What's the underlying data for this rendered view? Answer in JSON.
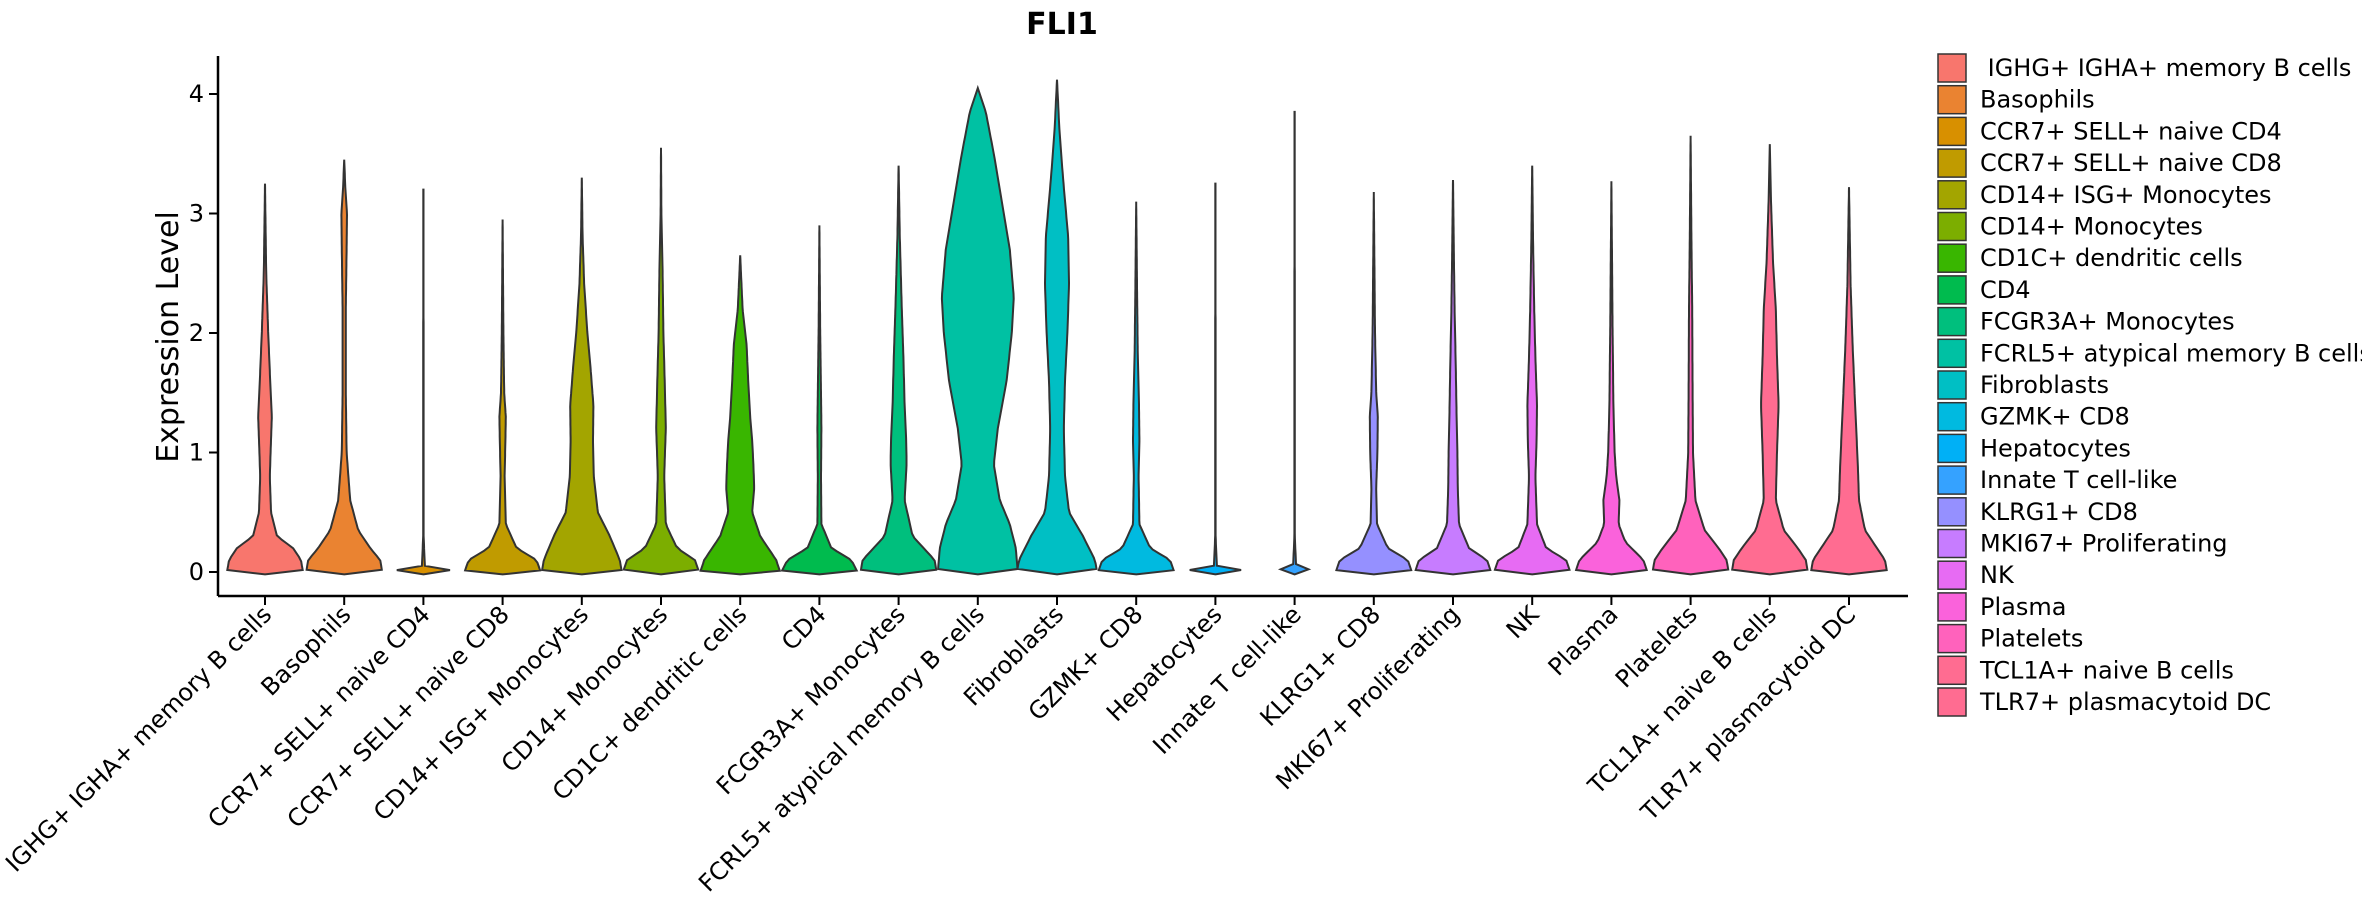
{
  "chart_data": {
    "type": "violin",
    "title": "FLI1",
    "xlabel": "",
    "ylabel": "Expression Level",
    "ylim": [
      -0.2,
      4.3
    ],
    "yticks": [
      0,
      1,
      2,
      3,
      4
    ],
    "legend_position": "right",
    "categories": [
      " IGHG+ IGHA+ memory B cells",
      "Basophils",
      "CCR7+ SELL+ naive CD4",
      "CCR7+ SELL+ naive CD8",
      "CD14+ ISG+ Monocytes",
      "CD14+ Monocytes",
      "CD1C+ dendritic cells",
      "CD4",
      "FCGR3A+ Monocytes",
      "FCRL5+ atypical memory B cells",
      "Fibroblasts",
      "GZMK+ CD8",
      "Hepatocytes",
      "Innate T cell-like",
      "KLRG1+ CD8",
      "MKI67+ Proliferating",
      "NK",
      "Plasma",
      "Platelets",
      "TCL1A+ naive B cells",
      "TLR7+ plasmacytoid DC"
    ],
    "colors": [
      "#F8766D",
      "#EA8331",
      "#D89000",
      "#C09B00",
      "#A3A500",
      "#7CAE00",
      "#39B600",
      "#00BB4E",
      "#00BF7D",
      "#00C1A3",
      "#00BFC4",
      "#00BAE0",
      "#00B0F6",
      "#35A2FF",
      "#9590FF",
      "#C77CFF",
      "#E76BF3",
      "#FA62DB",
      "#FF62BC",
      "#FF6C91",
      "#FF6C91"
    ],
    "series": [
      {
        "name": " IGHG+ IGHA+ memory B cells",
        "max": 3.25,
        "profile": [
          [
            0,
            0.95
          ],
          [
            0.1,
            0.9
          ],
          [
            0.2,
            0.7
          ],
          [
            0.3,
            0.3
          ],
          [
            0.5,
            0.15
          ],
          [
            0.8,
            0.12
          ],
          [
            1.0,
            0.14
          ],
          [
            1.3,
            0.17
          ],
          [
            1.6,
            0.13
          ],
          [
            2.0,
            0.08
          ],
          [
            2.5,
            0.03
          ],
          [
            3.0,
            0.01
          ],
          [
            3.25,
            0
          ]
        ]
      },
      {
        "name": "Basophils",
        "max": 3.45,
        "profile": [
          [
            0,
            0.95
          ],
          [
            0.1,
            0.9
          ],
          [
            0.2,
            0.65
          ],
          [
            0.35,
            0.35
          ],
          [
            0.6,
            0.15
          ],
          [
            1.0,
            0.06
          ],
          [
            1.5,
            0.04
          ],
          [
            2.2,
            0.04
          ],
          [
            2.7,
            0.06
          ],
          [
            3.0,
            0.07
          ],
          [
            3.2,
            0.03
          ],
          [
            3.45,
            0
          ]
        ]
      },
      {
        "name": "CCR7+ SELL+ naive CD4",
        "max": 3.2,
        "profile": [
          [
            0,
            1.0
          ],
          [
            0.015,
            0.7
          ],
          [
            0.03,
            0.04
          ],
          [
            0.3,
            0.005
          ],
          [
            3.2,
            0.003
          ]
        ]
      },
      {
        "name": "CCR7+ SELL+ naive CD8",
        "max": 2.95,
        "profile": [
          [
            0,
            0.95
          ],
          [
            0.1,
            0.85
          ],
          [
            0.2,
            0.35
          ],
          [
            0.4,
            0.08
          ],
          [
            0.8,
            0.05
          ],
          [
            1.1,
            0.07
          ],
          [
            1.3,
            0.08
          ],
          [
            1.5,
            0.04
          ],
          [
            2.0,
            0.02
          ],
          [
            2.95,
            0
          ]
        ]
      },
      {
        "name": "CD14+ ISG+ Monocytes",
        "max": 3.3,
        "profile": [
          [
            0,
            1.0
          ],
          [
            0.1,
            0.95
          ],
          [
            0.3,
            0.7
          ],
          [
            0.5,
            0.4
          ],
          [
            0.8,
            0.3
          ],
          [
            1.1,
            0.28
          ],
          [
            1.4,
            0.29
          ],
          [
            1.7,
            0.22
          ],
          [
            2.0,
            0.14
          ],
          [
            2.4,
            0.06
          ],
          [
            2.8,
            0.02
          ],
          [
            3.3,
            0
          ]
        ]
      },
      {
        "name": "CD14+ Monocytes",
        "max": 3.55,
        "profile": [
          [
            0,
            0.95
          ],
          [
            0.1,
            0.85
          ],
          [
            0.2,
            0.4
          ],
          [
            0.4,
            0.12
          ],
          [
            0.8,
            0.08
          ],
          [
            1.2,
            0.12
          ],
          [
            1.5,
            0.1
          ],
          [
            2.0,
            0.06
          ],
          [
            2.5,
            0.04
          ],
          [
            3.0,
            0.01
          ],
          [
            3.55,
            0
          ]
        ]
      },
      {
        "name": "CD1C+ dendritic cells",
        "max": 2.65,
        "profile": [
          [
            0,
            1.0
          ],
          [
            0.1,
            0.9
          ],
          [
            0.3,
            0.5
          ],
          [
            0.5,
            0.3
          ],
          [
            0.7,
            0.35
          ],
          [
            0.9,
            0.33
          ],
          [
            1.1,
            0.3
          ],
          [
            1.3,
            0.25
          ],
          [
            1.6,
            0.2
          ],
          [
            1.9,
            0.16
          ],
          [
            2.2,
            0.06
          ],
          [
            2.65,
            0
          ]
        ]
      },
      {
        "name": "CD4",
        "max": 2.9,
        "profile": [
          [
            0,
            0.95
          ],
          [
            0.1,
            0.8
          ],
          [
            0.2,
            0.3
          ],
          [
            0.4,
            0.05
          ],
          [
            0.8,
            0.04
          ],
          [
            1.2,
            0.05
          ],
          [
            1.5,
            0.04
          ],
          [
            2.0,
            0.02
          ],
          [
            2.9,
            0
          ]
        ]
      },
      {
        "name": "FCGR3A+ Monocytes",
        "max": 3.4,
        "profile": [
          [
            0,
            0.95
          ],
          [
            0.1,
            0.9
          ],
          [
            0.3,
            0.35
          ],
          [
            0.6,
            0.15
          ],
          [
            0.9,
            0.2
          ],
          [
            1.1,
            0.19
          ],
          [
            1.4,
            0.15
          ],
          [
            1.8,
            0.12
          ],
          [
            2.2,
            0.08
          ],
          [
            2.8,
            0.03
          ],
          [
            3.4,
            0
          ]
        ]
      },
      {
        "name": "FCRL5+ atypical memory B cells",
        "max": 4.05,
        "profile": [
          [
            0,
            1.0
          ],
          [
            0.2,
            0.95
          ],
          [
            0.4,
            0.8
          ],
          [
            0.6,
            0.55
          ],
          [
            0.9,
            0.4
          ],
          [
            1.2,
            0.5
          ],
          [
            1.6,
            0.72
          ],
          [
            2.0,
            0.85
          ],
          [
            2.3,
            0.9
          ],
          [
            2.7,
            0.8
          ],
          [
            3.1,
            0.6
          ],
          [
            3.5,
            0.4
          ],
          [
            3.85,
            0.2
          ],
          [
            4.05,
            0
          ]
        ]
      },
      {
        "name": "Fibroblasts",
        "max": 4.12,
        "profile": [
          [
            0,
            1.0
          ],
          [
            0.1,
            0.95
          ],
          [
            0.3,
            0.65
          ],
          [
            0.5,
            0.3
          ],
          [
            0.8,
            0.2
          ],
          [
            1.2,
            0.17
          ],
          [
            1.6,
            0.2
          ],
          [
            2.0,
            0.26
          ],
          [
            2.4,
            0.3
          ],
          [
            2.8,
            0.28
          ],
          [
            3.3,
            0.15
          ],
          [
            3.7,
            0.06
          ],
          [
            4.12,
            0
          ]
        ]
      },
      {
        "name": "GZMK+ CD8",
        "max": 3.1,
        "profile": [
          [
            0,
            0.95
          ],
          [
            0.1,
            0.85
          ],
          [
            0.2,
            0.35
          ],
          [
            0.4,
            0.08
          ],
          [
            0.8,
            0.06
          ],
          [
            1.1,
            0.08
          ],
          [
            1.4,
            0.07
          ],
          [
            1.8,
            0.04
          ],
          [
            2.4,
            0.02
          ],
          [
            3.1,
            0
          ]
        ]
      },
      {
        "name": "Hepatocytes",
        "max": 3.25,
        "profile": [
          [
            0,
            1.0
          ],
          [
            0.015,
            0.7
          ],
          [
            0.03,
            0.04
          ],
          [
            0.3,
            0.005
          ],
          [
            3.25,
            0.003
          ]
        ]
      },
      {
        "name": "Innate T cell-like",
        "max": 3.85,
        "profile": [
          [
            0,
            1.0
          ],
          [
            0.015,
            0.7
          ],
          [
            0.03,
            0.04
          ],
          [
            0.3,
            0.005
          ],
          [
            3.85,
            0.003
          ]
        ]
      },
      {
        "name": "KLRG1+ CD8",
        "max": 3.18,
        "profile": [
          [
            0,
            0.95
          ],
          [
            0.1,
            0.85
          ],
          [
            0.2,
            0.35
          ],
          [
            0.4,
            0.08
          ],
          [
            0.7,
            0.06
          ],
          [
            1.0,
            0.09
          ],
          [
            1.3,
            0.1
          ],
          [
            1.5,
            0.06
          ],
          [
            2.0,
            0.03
          ],
          [
            3.18,
            0
          ]
        ]
      },
      {
        "name": "MKI67+ Proliferating",
        "max": 3.28,
        "profile": [
          [
            0,
            0.95
          ],
          [
            0.1,
            0.85
          ],
          [
            0.2,
            0.4
          ],
          [
            0.4,
            0.15
          ],
          [
            0.7,
            0.12
          ],
          [
            1.0,
            0.11
          ],
          [
            1.3,
            0.09
          ],
          [
            1.7,
            0.07
          ],
          [
            2.2,
            0.04
          ],
          [
            2.7,
            0.02
          ],
          [
            3.28,
            0
          ]
        ]
      },
      {
        "name": "NK",
        "max": 3.4,
        "profile": [
          [
            0,
            0.95
          ],
          [
            0.1,
            0.85
          ],
          [
            0.2,
            0.35
          ],
          [
            0.4,
            0.12
          ],
          [
            0.8,
            0.08
          ],
          [
            1.1,
            0.11
          ],
          [
            1.4,
            0.12
          ],
          [
            1.8,
            0.08
          ],
          [
            2.2,
            0.05
          ],
          [
            2.8,
            0.02
          ],
          [
            3.4,
            0
          ]
        ]
      },
      {
        "name": "Plasma",
        "max": 3.27,
        "profile": [
          [
            0,
            0.9
          ],
          [
            0.1,
            0.8
          ],
          [
            0.25,
            0.35
          ],
          [
            0.4,
            0.18
          ],
          [
            0.6,
            0.2
          ],
          [
            0.8,
            0.12
          ],
          [
            1.0,
            0.08
          ],
          [
            1.4,
            0.05
          ],
          [
            2.0,
            0.03
          ],
          [
            3.27,
            0
          ]
        ]
      },
      {
        "name": "Platelets",
        "max": 3.65,
        "profile": [
          [
            0,
            0.95
          ],
          [
            0.1,
            0.9
          ],
          [
            0.2,
            0.7
          ],
          [
            0.35,
            0.35
          ],
          [
            0.6,
            0.12
          ],
          [
            1.0,
            0.06
          ],
          [
            1.5,
            0.05
          ],
          [
            2.2,
            0.04
          ],
          [
            2.8,
            0.02
          ],
          [
            3.65,
            0
          ]
        ]
      },
      {
        "name": "TCL1A+ naive B cells",
        "max": 3.58,
        "profile": [
          [
            0,
            0.95
          ],
          [
            0.1,
            0.9
          ],
          [
            0.2,
            0.7
          ],
          [
            0.35,
            0.35
          ],
          [
            0.6,
            0.15
          ],
          [
            1.0,
            0.18
          ],
          [
            1.4,
            0.22
          ],
          [
            1.8,
            0.18
          ],
          [
            2.2,
            0.15
          ],
          [
            2.6,
            0.08
          ],
          [
            3.1,
            0.03
          ],
          [
            3.58,
            0
          ]
        ]
      },
      {
        "name": "TLR7+ plasmacytoid DC",
        "max": 3.22,
        "profile": [
          [
            0,
            0.95
          ],
          [
            0.1,
            0.9
          ],
          [
            0.2,
            0.7
          ],
          [
            0.35,
            0.4
          ],
          [
            0.6,
            0.25
          ],
          [
            0.9,
            0.22
          ],
          [
            1.2,
            0.18
          ],
          [
            1.5,
            0.14
          ],
          [
            1.9,
            0.09
          ],
          [
            2.4,
            0.04
          ],
          [
            3.22,
            0
          ]
        ]
      }
    ]
  }
}
